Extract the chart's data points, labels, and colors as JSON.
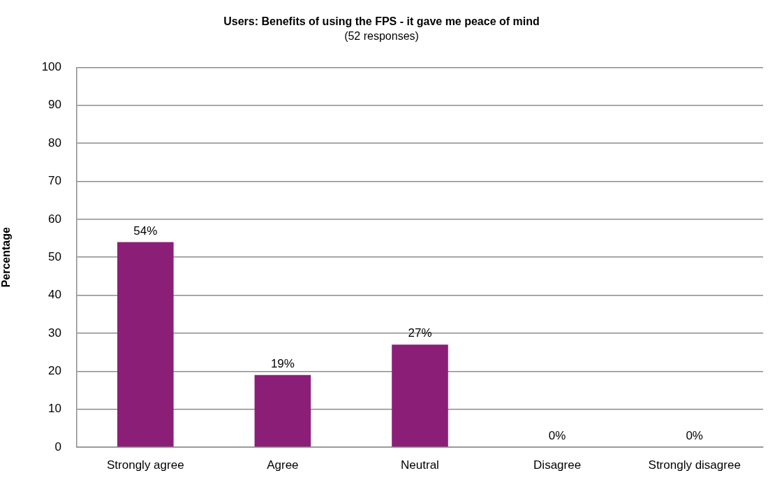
{
  "chart_data": {
    "type": "bar",
    "title": "Users: Benefits of using the FPS - it gave me peace of mind",
    "subtitle": "(52 responses)",
    "ylabel": "Percentage",
    "categories": [
      "Strongly agree",
      "Agree",
      "Neutral",
      "Disagree",
      "Strongly disagree"
    ],
    "values": [
      54,
      19,
      27,
      0,
      0
    ],
    "color": "#8b1f77",
    "value_labels": [
      "54%",
      "19%",
      "27%",
      "0%",
      "0%"
    ],
    "ylim": [
      0,
      100
    ],
    "yticks": [
      0,
      10,
      20,
      30,
      40,
      50,
      60,
      70,
      80,
      90,
      100
    ],
    "grid": "y"
  }
}
